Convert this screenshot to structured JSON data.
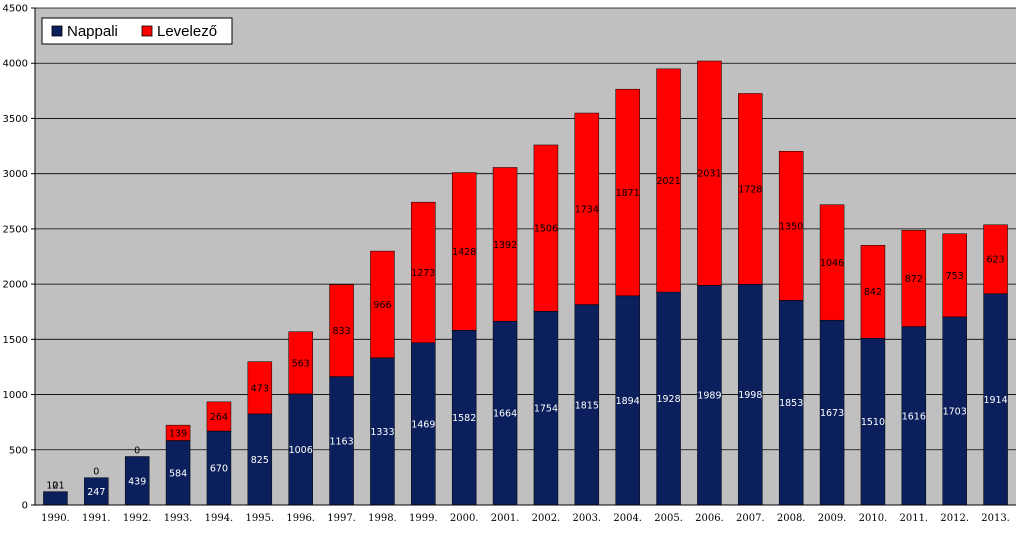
{
  "chart_data": {
    "type": "bar",
    "stacked": true,
    "categories": [
      "1990.",
      "1991.",
      "1992.",
      "1993.",
      "1994.",
      "1995.",
      "1996.",
      "1997.",
      "1998.",
      "1999.",
      "2000.",
      "2001.",
      "2002.",
      "2003.",
      "2004.",
      "2005.",
      "2006.",
      "2007.",
      "2008.",
      "2009.",
      "2010.",
      "2011.",
      "2012.",
      "2013."
    ],
    "series": [
      {
        "name": "Nappali",
        "color": "#0a1f5c",
        "label_color": "#ffffff",
        "values": [
          121,
          247,
          439,
          584,
          670,
          825,
          1006,
          1163,
          1333,
          1469,
          1582,
          1664,
          1754,
          1815,
          1894,
          1928,
          1989,
          1998,
          1853,
          1673,
          1510,
          1616,
          1703,
          1914
        ]
      },
      {
        "name": "Levelező",
        "color": "#ff0000",
        "label_color": "#000000",
        "values": [
          0,
          0,
          0,
          139,
          264,
          473,
          563,
          833,
          966,
          1273,
          1428,
          1392,
          1506,
          1734,
          1871,
          2021,
          2031,
          1728,
          1350,
          1046,
          842,
          872,
          753,
          623
        ]
      }
    ],
    "ylim": [
      0,
      4500
    ],
    "yticks": [
      0,
      500,
      1000,
      1500,
      2000,
      2500,
      3000,
      3500,
      4000,
      4500
    ],
    "grid": true,
    "plot_background": "#c0c0c0",
    "legend_position": "top-left"
  }
}
